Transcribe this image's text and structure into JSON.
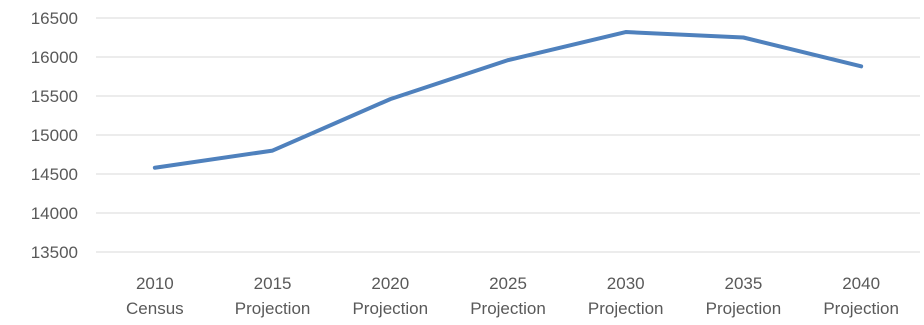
{
  "chart_data": {
    "type": "line",
    "title": "",
    "xlabel": "",
    "ylabel": "",
    "categories": [
      [
        "2010",
        "Census"
      ],
      [
        "2015",
        "Projection"
      ],
      [
        "2020",
        "Projection"
      ],
      [
        "2025",
        "Projection"
      ],
      [
        "2030",
        "Projection"
      ],
      [
        "2035",
        "Projection"
      ],
      [
        "2040",
        "Projection"
      ]
    ],
    "series": [
      {
        "values": [
          14580,
          14800,
          15460,
          15960,
          16320,
          16250,
          15880
        ],
        "color": "#4f81bd"
      }
    ],
    "ylim": [
      13500,
      16500
    ],
    "yticks": [
      13500,
      14000,
      14500,
      15000,
      15500,
      16000,
      16500
    ],
    "grid": true,
    "legend": "none"
  }
}
